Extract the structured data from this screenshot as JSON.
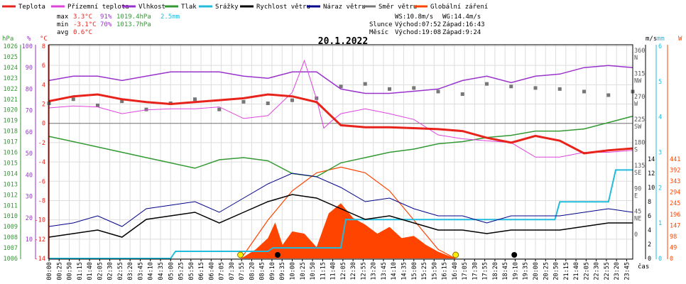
{
  "chart_data": {
    "type": "line",
    "title": "20.1.2022",
    "x_axis_label": "čas",
    "x_ticks": [
      "00:00",
      "00:25",
      "00:50",
      "01:15",
      "01:40",
      "02:05",
      "02:30",
      "02:55",
      "03:20",
      "03:45",
      "04:10",
      "04:35",
      "05:00",
      "05:25",
      "05:50",
      "06:15",
      "06:40",
      "07:05",
      "07:30",
      "07:55",
      "08:20",
      "08:45",
      "09:10",
      "09:35",
      "10:00",
      "10:25",
      "10:50",
      "11:15",
      "11:40",
      "12:05",
      "12:30",
      "12:55",
      "13:20",
      "13:45",
      "14:10",
      "14:35",
      "15:00",
      "15:25",
      "15:50",
      "16:15",
      "16:40",
      "17:05",
      "17:30",
      "17:55",
      "18:20",
      "18:45",
      "19:10",
      "19:35",
      "20:00",
      "20:25",
      "20:50",
      "21:15",
      "21:40",
      "22:05",
      "22:30",
      "22:55",
      "23:20",
      "23:45"
    ],
    "legend": [
      {
        "name": "Teplota",
        "color": "#e8231c"
      },
      {
        "name": "Přízemní teplota",
        "color": "#dd44dd"
      },
      {
        "name": "Vlhkost",
        "color": "#9933cc"
      },
      {
        "name": "Tlak",
        "color": "#339933"
      },
      {
        "name": "Srážky",
        "color": "#22bbdd"
      },
      {
        "name": "Rychlost větru",
        "color": "#000000"
      },
      {
        "name": "Náraz větru",
        "color": "#000088"
      },
      {
        "name": "Směr větru",
        "color": "#777777"
      },
      {
        "name": "Globální záření",
        "color": "#ff4400"
      }
    ],
    "stats": {
      "max": {
        "label": "max",
        "temp": "3.3°C",
        "hum": "91%",
        "press": "1019.4hPa",
        "rain": "2.5mm"
      },
      "min": {
        "label": "min",
        "temp": "-3.1°C",
        "hum": "70%",
        "press": "1013.7hPa"
      },
      "avg": {
        "label": "avg",
        "temp": "0.6°C"
      }
    },
    "info": {
      "ws": "WS:10.8m/s",
      "wg": "WG:14.4m/s",
      "slunce": "Slunce",
      "slunce_vychod": "Východ:07:52",
      "slunce_zapad": "Západ:16:43",
      "mesic": "Měsíc",
      "mesic_vychod": "Východ:19:08",
      "mesic_zapad": "Západ:9:24"
    },
    "axes": {
      "hpa": {
        "unit": "hPa",
        "color": "#339933",
        "ticks": [
          "1026",
          "1025",
          "1024",
          "1023",
          "1022",
          "1021",
          "1020",
          "1019",
          "1018",
          "1017",
          "1016",
          "1015",
          "1014",
          "1013",
          "1012",
          "1011",
          "1010",
          "1009",
          "1008",
          "1007",
          "1006"
        ],
        "range": [
          1006,
          1026
        ]
      },
      "pct": {
        "unit": "%",
        "color": "#9933cc",
        "ticks": [
          "100",
          "90",
          "80",
          "70",
          "60",
          "50",
          "40",
          "30",
          "20",
          "10"
        ],
        "range": [
          10,
          100
        ]
      },
      "temp": {
        "unit": "°C",
        "color": "#e8231c",
        "ticks": [
          "8",
          "6",
          "4",
          "2",
          "0",
          "-2",
          "-4",
          "-6",
          "-8",
          "-10",
          "-12",
          "-14"
        ],
        "range": [
          -14,
          8
        ]
      },
      "dir": {
        "unit": "°",
        "ticks": [
          "360",
          "315",
          "270",
          "225",
          "180",
          "135",
          "90",
          "45",
          "0"
        ],
        "letters": [
          "N",
          "NW",
          "W",
          "SW",
          "S",
          "SE",
          "E",
          "NE",
          ""
        ]
      },
      "ms": {
        "unit": "m/s",
        "ticks": [
          "14",
          "12",
          "10",
          "8",
          "6",
          "4",
          "2",
          "0"
        ],
        "range": [
          0,
          14
        ]
      },
      "mm": {
        "unit": "mm",
        "color": "#22bbdd",
        "ticks": [
          "6",
          "5",
          "4",
          "3",
          "2",
          "1",
          "0"
        ],
        "range": [
          0,
          6
        ]
      },
      "wm2": {
        "unit": "W",
        "color": "#ff4400",
        "ticks": [
          "441",
          "392",
          "343",
          "294",
          "245",
          "196",
          "147",
          "98",
          "49",
          "0"
        ],
        "range": [
          0,
          441
        ]
      }
    },
    "series": {
      "teplota": {
        "x": [
          0,
          1,
          2,
          3,
          4,
          5,
          6,
          7,
          8,
          9,
          10,
          11,
          12,
          13,
          14,
          15,
          16,
          17,
          18,
          19,
          20,
          21,
          22,
          23,
          24
        ],
        "y": [
          2.3,
          2.8,
          3.0,
          2.5,
          2.2,
          2.0,
          2.2,
          2.4,
          2.6,
          3.0,
          2.8,
          2.2,
          -0.2,
          -0.4,
          -0.4,
          -0.5,
          -0.6,
          -0.8,
          -1.5,
          -2.0,
          -1.3,
          -1.8,
          -3.1,
          -2.8,
          -2.6
        ]
      },
      "prizemni_teplota": {
        "x": [
          0,
          1,
          2,
          3,
          4,
          5,
          6,
          7,
          8,
          9,
          10,
          10.5,
          11,
          11.3,
          11.6,
          12,
          13,
          14,
          15,
          16,
          17,
          18,
          19,
          20,
          21,
          22,
          23,
          24
        ],
        "y": [
          1.6,
          1.8,
          1.7,
          1.0,
          1.4,
          1.5,
          1.5,
          1.7,
          0.5,
          0.8,
          3.2,
          6.5,
          2.5,
          -0.5,
          0.2,
          1.0,
          1.5,
          1.0,
          0.4,
          -1.2,
          -1.6,
          -1.8,
          -2.0,
          -3.5,
          -3.5,
          -3.0,
          -3.0,
          -2.8
        ]
      },
      "vlhkost": {
        "x": [
          0,
          1,
          2,
          3,
          4,
          5,
          6,
          7,
          8,
          9,
          10,
          11,
          12,
          13,
          14,
          15,
          16,
          17,
          18,
          19,
          20,
          21,
          22,
          23,
          24
        ],
        "y": [
          84,
          86,
          86,
          84,
          86,
          88,
          88,
          88,
          86,
          85,
          88,
          88,
          80,
          78,
          78,
          79,
          80,
          84,
          86,
          83,
          86,
          87,
          90,
          91,
          90
        ]
      },
      "tlak": {
        "x": [
          0,
          1,
          2,
          3,
          4,
          5,
          6,
          7,
          8,
          9,
          10,
          11,
          12,
          13,
          14,
          15,
          16,
          17,
          18,
          19,
          20,
          21,
          22,
          23,
          24
        ],
        "y": [
          1017.5,
          1017.0,
          1016.5,
          1016.0,
          1015.5,
          1015.0,
          1014.5,
          1015.3,
          1015.5,
          1015.2,
          1014.0,
          1013.7,
          1015.0,
          1015.5,
          1016.0,
          1016.3,
          1016.8,
          1017.0,
          1017.4,
          1017.6,
          1018.0,
          1018.0,
          1018.2,
          1018.8,
          1019.4
        ]
      },
      "srazky": {
        "x": [
          0,
          5.0,
          5.2,
          9.0,
          9.2,
          12.0,
          12.2,
          20.8,
          21.0,
          23.0,
          23.3,
          24
        ],
        "y": [
          0,
          0,
          0.2,
          0.2,
          0.3,
          0.3,
          1.1,
          1.1,
          1.6,
          1.6,
          2.5,
          2.5
        ]
      },
      "rychlost_vetru": {
        "x": [
          0,
          1,
          2,
          3,
          4,
          5,
          6,
          7,
          8,
          9,
          10,
          11,
          12,
          13,
          14,
          15,
          16,
          17,
          18,
          19,
          20,
          21,
          22,
          23,
          24
        ],
        "y": [
          3.0,
          3.5,
          4.0,
          3.0,
          5.5,
          6.0,
          6.5,
          5.0,
          6.5,
          8.0,
          9.0,
          8.5,
          7.0,
          5.5,
          6.0,
          5.0,
          4.0,
          4.0,
          3.5,
          4.0,
          4.0,
          4.0,
          4.5,
          5.0,
          5.0
        ]
      },
      "naraz_vetru": {
        "x": [
          0,
          1,
          2,
          3,
          4,
          5,
          6,
          7,
          8,
          9,
          10,
          11,
          12,
          13,
          14,
          15,
          16,
          17,
          18,
          19,
          20,
          21,
          22,
          23,
          24
        ],
        "y": [
          4.5,
          5.0,
          6.0,
          4.5,
          7.0,
          7.5,
          8.0,
          6.5,
          8.5,
          10.5,
          12.0,
          11.5,
          10.0,
          8.0,
          8.5,
          7.0,
          6.0,
          6.0,
          5.0,
          6.0,
          6.0,
          6.0,
          6.5,
          7.0,
          6.5
        ]
      },
      "smer_vetru": {
        "x": [
          0,
          1,
          2,
          3,
          4,
          5,
          6,
          7,
          8,
          9,
          10,
          11,
          12,
          13,
          14,
          15,
          16,
          17,
          18,
          19,
          20,
          21,
          22,
          23,
          24
        ],
        "y": [
          262,
          270,
          258,
          266,
          250,
          262,
          270,
          250,
          265,
          262,
          268,
          272,
          295,
          300,
          290,
          292,
          285,
          280,
          300,
          295,
          292,
          290,
          285,
          278,
          285
        ]
      },
      "globalni_zareni": {
        "x": [
          7.9,
          8.5,
          9.0,
          9.3,
          9.6,
          10.0,
          10.5,
          11.0,
          11.5,
          12.0,
          12.5,
          13.0,
          13.5,
          14.0,
          14.5,
          15.0,
          15.5,
          16.0,
          16.7
        ],
        "y": [
          0,
          40,
          90,
          160,
          60,
          120,
          110,
          50,
          200,
          245,
          180,
          150,
          110,
          140,
          90,
          100,
          60,
          30,
          0
        ]
      },
      "teoreticke_zareni": {
        "x": [
          7.9,
          9,
          10,
          11,
          12,
          13,
          14,
          15,
          16,
          16.7
        ],
        "y": [
          0,
          170,
          300,
          380,
          405,
          380,
          300,
          170,
          40,
          0
        ]
      }
    },
    "markers": [
      {
        "name": "Slunce východ",
        "x": 7.87
      },
      {
        "name": "Slunce západ",
        "x": 16.72
      },
      {
        "name": "Měsíc západ",
        "x": 9.4
      },
      {
        "name": "Měsíc východ",
        "x": 19.13
      }
    ]
  }
}
